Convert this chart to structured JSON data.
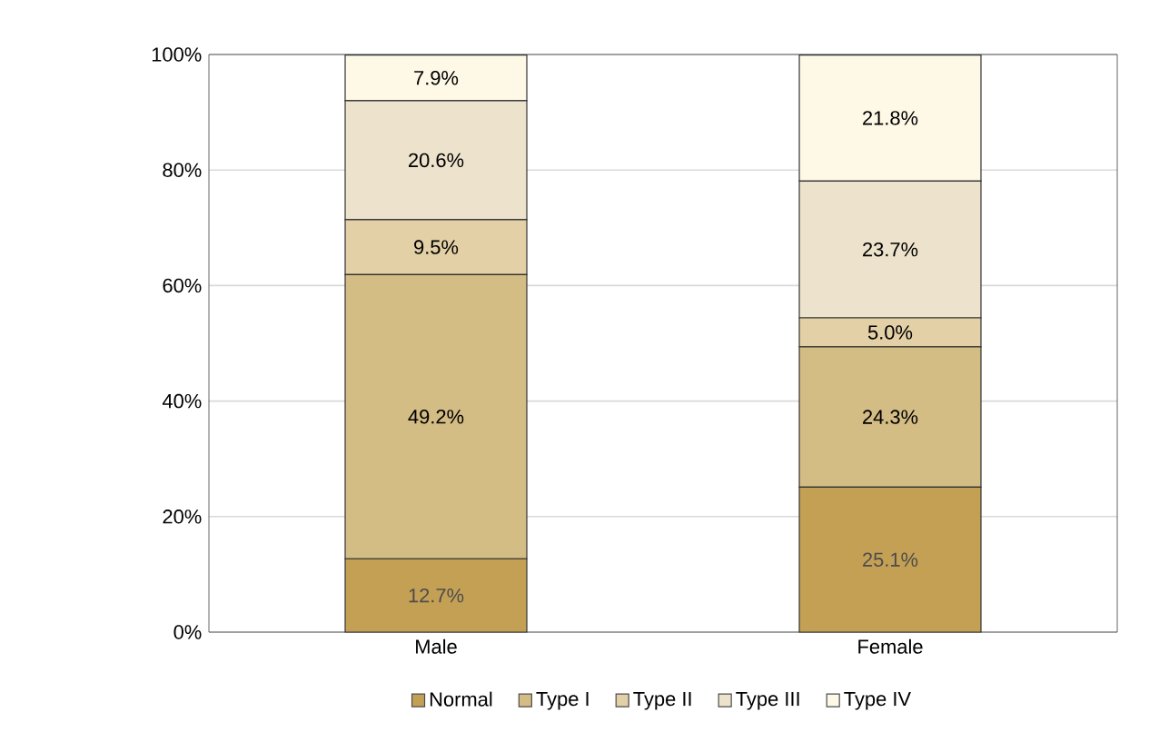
{
  "chart_data": {
    "type": "bar",
    "stacked": true,
    "categories": [
      "Male",
      "Female"
    ],
    "series": [
      {
        "name": "Normal",
        "color": "#c4a055",
        "values": [
          12.7,
          25.1
        ],
        "value_labels": [
          "12.7%",
          "25.1%"
        ]
      },
      {
        "name": "Type I",
        "color": "#d4bc85",
        "values": [
          49.2,
          24.3
        ],
        "value_labels": [
          "49.2%",
          "24.3%"
        ]
      },
      {
        "name": "Type II",
        "color": "#e3d0a6",
        "values": [
          9.5,
          5.0
        ],
        "value_labels": [
          "9.5%",
          "5.0%"
        ]
      },
      {
        "name": "Type III",
        "color": "#ede3cc",
        "values": [
          20.6,
          23.7
        ],
        "value_labels": [
          "20.6%",
          "23.7%"
        ]
      },
      {
        "name": "Type IV",
        "color": "#fef8e6",
        "values": [
          7.9,
          21.8
        ],
        "value_labels": [
          "7.9%",
          "21.8%"
        ]
      }
    ],
    "ylim": [
      0,
      100
    ],
    "yticks": [
      {
        "value": 0,
        "label": "0%"
      },
      {
        "value": 20,
        "label": "20%"
      },
      {
        "value": 40,
        "label": "40%"
      },
      {
        "value": 60,
        "label": "60%"
      },
      {
        "value": 80,
        "label": "80%"
      },
      {
        "value": 100,
        "label": "100%"
      }
    ],
    "grid": "y",
    "legend": "bottom"
  }
}
